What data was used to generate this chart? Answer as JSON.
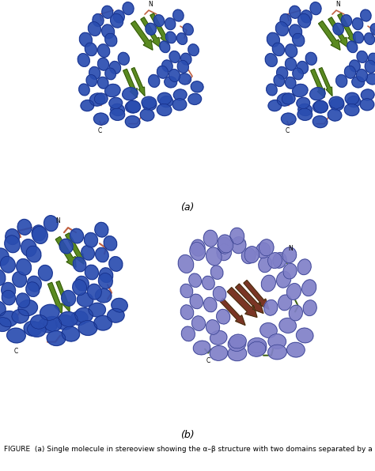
{
  "panel_a_label": "(a)",
  "panel_b_label": "(b)",
  "caption": "FIGURE  (a) Single molecule in stereoview showing the α–β structure with two domains separated by a hinge.  Domain N",
  "bg_color": "#ffffff",
  "label_fontsize": 9,
  "caption_fontsize": 6.5,
  "figure_width": 4.74,
  "figure_height": 5.96,
  "c_blue": "#2a4db0",
  "c_green": "#5a8a20",
  "c_loop": "#c06040",
  "c_purple": "#8080c8",
  "c_brown": "#7a3525",
  "c_dkgreen": "#3a6010"
}
